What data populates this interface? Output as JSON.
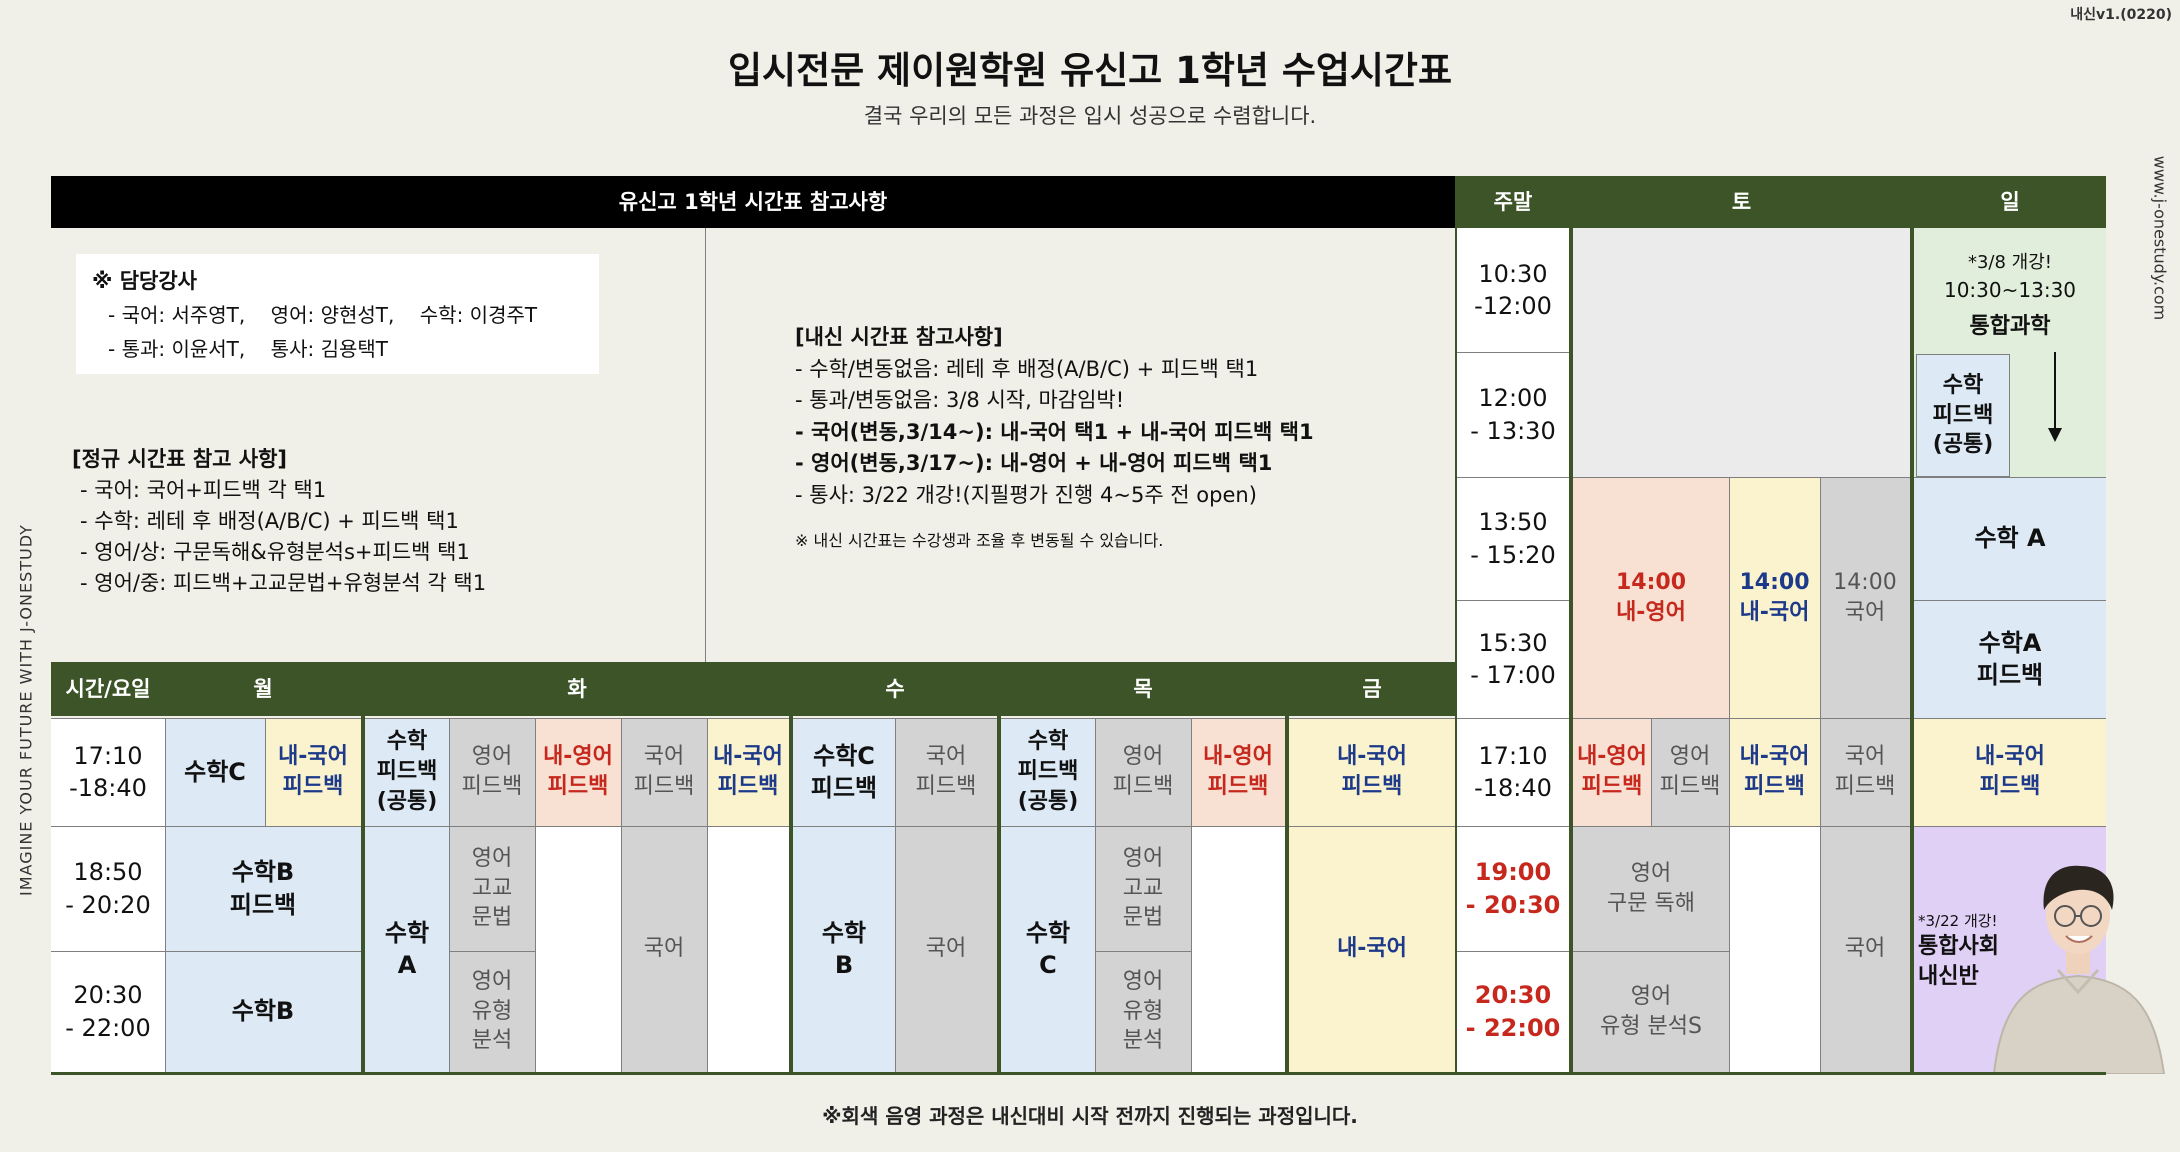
{
  "version": "내신v1.(0220)",
  "title": "입시전문 제이원학원 유신고 1학년 수업시간표",
  "subtitle": "결국 우리의 모든 과정은 입시 성공으로 수렴합니다.",
  "side_left": "IMAGINE YOUR FUTURE WITH J-ONESTUDY",
  "side_right": "www.j-onestudy.com",
  "footer": "※회색 음영 과정은 내신대비 시작 전까지 진행되는 과정입니다.",
  "header": {
    "reference": "유신고 1학년 시간표 참고사항",
    "weekend": "주말",
    "sat": "토",
    "sun": "일",
    "time_day": "시간/요일",
    "mon": "월",
    "tue": "화",
    "wed": "수",
    "thu": "목",
    "fri": "금"
  },
  "teachers": {
    "title": "※ 담당강사",
    "line1": "- 국어: 서주영T,    영어: 양현성T,    수학: 이경주T",
    "line2": "- 통과: 이윤서T,    통사: 김용택T"
  },
  "regular": {
    "title": "[정규 시간표 참고 사항]",
    "items": [
      "- 국어: 국어+피드백 각 택1",
      "- 수학: 레테 후 배정(A/B/C) + 피드백 택1",
      "- 영어/상: 구문독해&유형분석s+피드백 택1",
      "- 영어/중: 피드백+고교문법+유형분석 각 택1"
    ]
  },
  "naesin": {
    "title": "[내신 시간표 참고사항]",
    "items": [
      "- 수학/변동없음: 레테 후 배정(A/B/C) + 피드백 택1",
      "- 통과/변동없음: 3/8 시작, 마감임박!",
      "- 국어(변동,3/14~): 내-국어 택1 + 내-국어 피드백 택1",
      "- 영어(변동,3/17~): 내-영어 + 내-영어 피드백 택1",
      "- 통사: 3/22 개강!(지필평가 진행 4~5주 전 open)"
    ],
    "note": "※ 내신 시간표는 수강생과 조율 후 변동될 수 있습니다."
  },
  "weekend_times": {
    "t1": "10:30\n-12:00",
    "t2": "12:00\n- 13:30",
    "t3": "13:50\n- 15:20",
    "t4": "15:30\n- 17:00",
    "t5": "17:10\n-18:40",
    "t6": "19:00\n- 20:30",
    "t7": "20:30\n- 22:00"
  },
  "weekday_times": {
    "t1": "17:10\n-18:40",
    "t2": "18:50\n- 20:20",
    "t3": "20:30\n- 22:00"
  },
  "sat_cells": {
    "naeyeong_1400": "14:00\n내-영어",
    "naeguk_1400": "14:00\n내-국어",
    "guk_1400": "14:00\n국어",
    "naeyeong_fb": "내-영어\n피드백",
    "yeong_fb": "영어\n피드백",
    "naeguk_fb": "내-국어\n피드백",
    "guk_fb": "국어\n피드백",
    "yeong_gumun": "영어\n구문 독해",
    "yeong_yuhyeong": "영어\n유형 분석S",
    "guk": "국어"
  },
  "sun_cells": {
    "science_note": "*3/8 개강!",
    "science_time": "10:30~13:30",
    "science_name": "통합과학",
    "math_fb_common": "수학\n피드백\n(공통)",
    "math_a": "수학 A",
    "math_a_fb": "수학A\n피드백",
    "naeguk_fb": "내-국어\n피드백",
    "social_note": "*3/22 개강!",
    "social_name": "통합사회\n내신반"
  },
  "mon_cells": {
    "math_c": "수학C",
    "naeguk_fb": "내-국어\n피드백",
    "math_b_fb": "수학B\n피드백",
    "math_b": "수학B"
  },
  "tue_cells": {
    "math_fb_common": "수학\n피드백\n(공통)",
    "yeong_fb": "영어\n피드백",
    "naeyeong_fb": "내-영어\n피드백",
    "guk_fb": "국어\n피드백",
    "naeguk_fb": "내-국어\n피드백",
    "math_a": "수학\nA",
    "yeong_grammar": "영어\n고교\n문법",
    "yeong_analysis": "영어\n유형\n분석",
    "guk": "국어"
  },
  "wed_cells": {
    "math_c_fb": "수학C\n피드백",
    "guk_fb": "국어\n피드백",
    "math_b": "수학\nB",
    "guk": "국어"
  },
  "thu_cells": {
    "math_fb_common": "수학\n피드백\n(공통)",
    "yeong_fb": "영어\n피드백",
    "naeyeong_fb": "내-영어\n피드백",
    "math_c": "수학\nC",
    "yeong_grammar": "영어\n고교\n문법",
    "yeong_analysis": "영어\n유형\n분석"
  },
  "fri_cells": {
    "naeguk_fb": "내-국어\n피드백",
    "naeguk": "내-국어"
  },
  "colors": {
    "header_green": "#3d5428",
    "header_black": "#000000",
    "blue_cell": "#dde9f5",
    "yellow_cell": "#fbf3cd",
    "pink_cell": "#f8e0d3",
    "gray_cell": "#d3d3d3",
    "green_cell": "#e1eedb",
    "purple_cell": "#e0d0f5",
    "navy_text": "#1d3a8a",
    "red_text": "#c6281d"
  }
}
